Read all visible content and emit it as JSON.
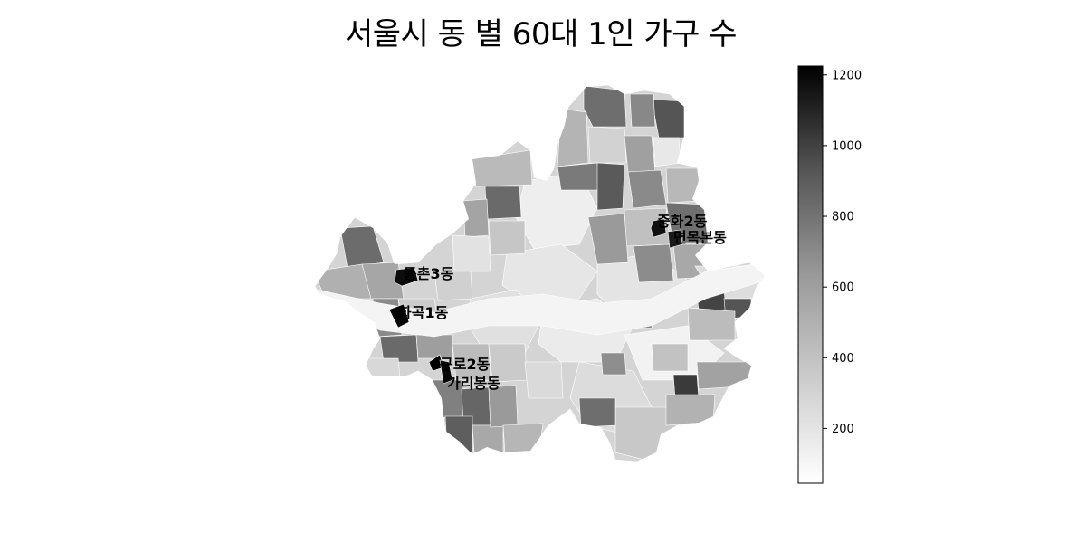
{
  "title": "서울시 동 별 60대 1인 가구 수",
  "colorbar": {
    "ticks": [
      {
        "value": 200,
        "label": "200"
      },
      {
        "value": 400,
        "label": "400"
      },
      {
        "value": 600,
        "label": "600"
      },
      {
        "value": 800,
        "label": "800"
      },
      {
        "value": 1000,
        "label": "1000"
      },
      {
        "value": 1200,
        "label": "1200"
      }
    ],
    "min": 45,
    "max": 1225,
    "low_color": "#ffffff",
    "high_color": "#000000"
  },
  "highlighted_dongs": [
    {
      "name": "중화2동",
      "value": 1150
    },
    {
      "name": "면목본동",
      "value": 1120
    },
    {
      "name": "등촌3동",
      "value": 1180
    },
    {
      "name": "화곡1동",
      "value": 1200
    },
    {
      "name": "구로2동",
      "value": 1225
    },
    {
      "name": "가리봉동",
      "value": 1190
    }
  ]
}
